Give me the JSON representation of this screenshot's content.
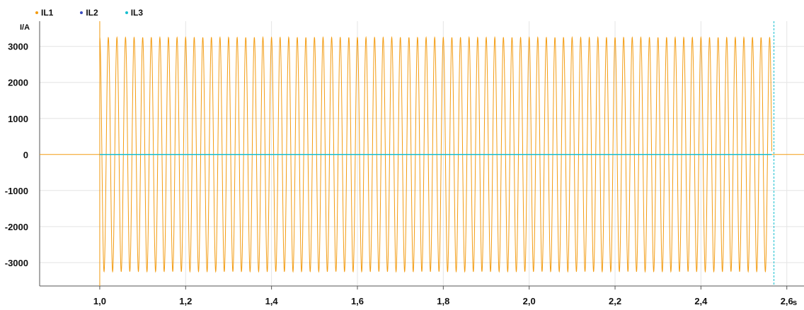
{
  "chart_data": {
    "type": "line",
    "title": "",
    "ylabel": "I/A",
    "xlabel": "s",
    "xlim": [
      0.86,
      2.64
    ],
    "ylim": [
      -3650,
      3700
    ],
    "x_ticks": [
      1.0,
      1.2,
      1.4,
      1.6,
      1.8,
      2.0,
      2.2,
      2.4,
      2.6
    ],
    "x_tick_labels": [
      "1,0",
      "1,2",
      "1,4",
      "1,6",
      "1,8",
      "2,0",
      "2,2",
      "2,4",
      "2,6"
    ],
    "y_ticks": [
      3000,
      2000,
      1000,
      0,
      -1000,
      -2000,
      -3000
    ],
    "y_tick_labels": [
      "3000",
      "2000",
      "1000",
      "0",
      "-1000",
      "-2000",
      "-3000"
    ],
    "grid": true,
    "legend_position": "top-left",
    "cursor_x": 2.57,
    "series": [
      {
        "name": "IL1",
        "color": "#f39c12",
        "waveform": "sine",
        "amplitude": 3250,
        "frequency_hz": 50,
        "start": 1.0,
        "end": 2.565,
        "baseline": 0
      },
      {
        "name": "IL2",
        "color": "#3b4cc0",
        "waveform": "constant",
        "value": 0,
        "start": 1.0,
        "end": 2.565
      },
      {
        "name": "IL3",
        "color": "#17becf",
        "waveform": "constant",
        "value": 0,
        "start": 1.0,
        "end": 2.565
      }
    ]
  }
}
